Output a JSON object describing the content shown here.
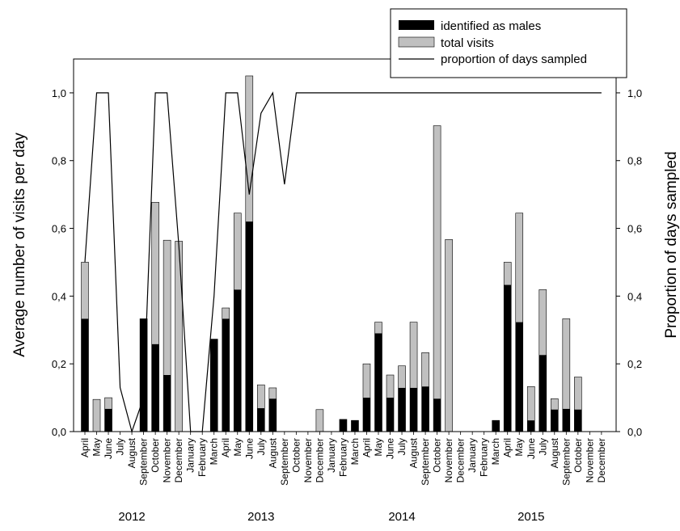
{
  "chart_data": {
    "type": "bar",
    "ylabel_left": "Average number of visits per day",
    "ylabel_right": "Proportion of days sampled",
    "ylim_left": [
      0,
      1.1
    ],
    "ylim_right": [
      0,
      1.1
    ],
    "yticks_left": [
      "0,0",
      "0,2",
      "0,4",
      "0,6",
      "0,8",
      "1,0"
    ],
    "yticks_right": [
      "0,0",
      "0,2",
      "0,4",
      "0,6",
      "0,8",
      "1,0"
    ],
    "grid": false,
    "legend_position": "top-right",
    "legend": [
      "identified as males",
      "total visits",
      "proportion of days sampled"
    ],
    "series_colors": {
      "males": "#000000",
      "total": "#c0c0c0",
      "line": "#000000"
    },
    "years": [
      {
        "label": "2012",
        "center_index": 4
      },
      {
        "label": "2013",
        "center_index": 15
      },
      {
        "label": "2014",
        "center_index": 27
      },
      {
        "label": "2015",
        "center_index": 38
      }
    ],
    "categories": [
      "April",
      "May",
      "June",
      "July",
      "August",
      "September",
      "October",
      "November",
      "December",
      "January",
      "February",
      "March",
      "April",
      "May",
      "June",
      "July",
      "August",
      "September",
      "October",
      "November",
      "December",
      "January",
      "February",
      "March",
      "April",
      "May",
      "June",
      "July",
      "August",
      "September",
      "October",
      "November",
      "December",
      "January",
      "February",
      "March",
      "April",
      "May",
      "June",
      "July",
      "August",
      "September",
      "October",
      "November",
      "December"
    ],
    "series": [
      {
        "name": "total visits",
        "values": [
          0.5,
          0.095,
          0.1,
          null,
          null,
          0.333,
          0.677,
          0.565,
          0.562,
          null,
          null,
          0.273,
          0.365,
          0.645,
          1.05,
          0.138,
          0.129,
          null,
          null,
          null,
          0.065,
          null,
          0.036,
          0.033,
          0.2,
          0.323,
          0.167,
          0.194,
          0.323,
          0.233,
          0.903,
          0.567,
          null,
          null,
          null,
          0.033,
          0.5,
          0.645,
          0.133,
          0.419,
          0.097,
          0.333,
          0.161,
          null,
          null
        ]
      },
      {
        "name": "identified as males",
        "values": [
          0.333,
          0.0,
          0.067,
          null,
          null,
          0.333,
          0.258,
          0.167,
          0.0,
          null,
          null,
          0.273,
          0.333,
          0.419,
          0.62,
          0.069,
          0.097,
          null,
          null,
          null,
          0.0,
          null,
          0.036,
          0.033,
          0.1,
          0.29,
          0.1,
          0.129,
          0.129,
          0.133,
          0.097,
          0.0,
          null,
          null,
          null,
          0.033,
          0.433,
          0.323,
          0.033,
          0.226,
          0.065,
          0.067,
          0.065,
          null,
          null
        ]
      },
      {
        "name": "proportion of days sampled",
        "values": [
          0.5,
          1.0,
          1.0,
          0.13,
          0.0,
          0.1,
          1.0,
          1.0,
          0.55,
          0.0,
          0.0,
          0.4,
          1.0,
          1.0,
          0.7,
          0.94,
          1.0,
          0.73,
          1.0,
          1.0,
          1.0,
          1.0,
          1.0,
          1.0,
          1.0,
          1.0,
          1.0,
          1.0,
          1.0,
          1.0,
          1.0,
          1.0,
          1.0,
          1.0,
          1.0,
          1.0,
          1.0,
          1.0,
          1.0,
          1.0,
          1.0,
          1.0,
          1.0,
          1.0,
          1.0
        ]
      }
    ]
  }
}
